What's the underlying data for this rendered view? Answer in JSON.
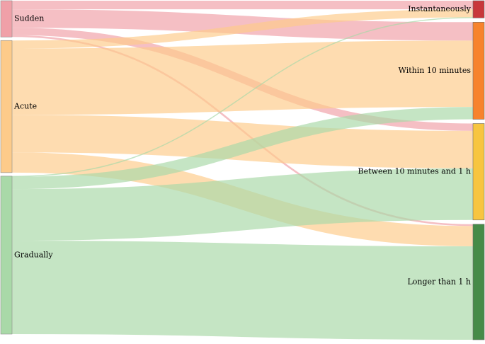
{
  "diagram": {
    "type": "sankey",
    "sources": [
      {
        "label": "Sudden",
        "color": "#f0a0a8"
      },
      {
        "label": "Acute",
        "color": "#fdcb8a"
      },
      {
        "label": "Gradually",
        "color": "#a9d9a8"
      }
    ],
    "targets": [
      {
        "label": "Instantaneously",
        "color": "#c8373a"
      },
      {
        "label": "Within 10 minutes",
        "color": "#f7832d"
      },
      {
        "label": "Between 10 minutes and 1 h",
        "color": "#f7c540"
      },
      {
        "label": "Longer than 1 h",
        "color": "#468b48"
      }
    ],
    "flows": [
      {
        "from": "Sudden",
        "to": "Instantaneously",
        "value": 14
      },
      {
        "from": "Sudden",
        "to": "Within 10 minutes",
        "value": 30
      },
      {
        "from": "Sudden",
        "to": "Between 10 minutes and 1 h",
        "value": 12
      },
      {
        "from": "Sudden",
        "to": "Longer than 1 h",
        "value": 3
      },
      {
        "from": "Acute",
        "to": "Instantaneously",
        "value": 13
      },
      {
        "from": "Acute",
        "to": "Within 10 minutes",
        "value": 108
      },
      {
        "from": "Acute",
        "to": "Between 10 minutes and 1 h",
        "value": 61
      },
      {
        "from": "Acute",
        "to": "Longer than 1 h",
        "value": 33
      },
      {
        "from": "Gradually",
        "to": "Instantaneously",
        "value": 1
      },
      {
        "from": "Gradually",
        "to": "Within 10 minutes",
        "value": 20
      },
      {
        "from": "Gradually",
        "to": "Between 10 minutes and 1 h",
        "value": 84
      },
      {
        "from": "Gradually",
        "to": "Longer than 1 h",
        "value": 152
      }
    ]
  }
}
